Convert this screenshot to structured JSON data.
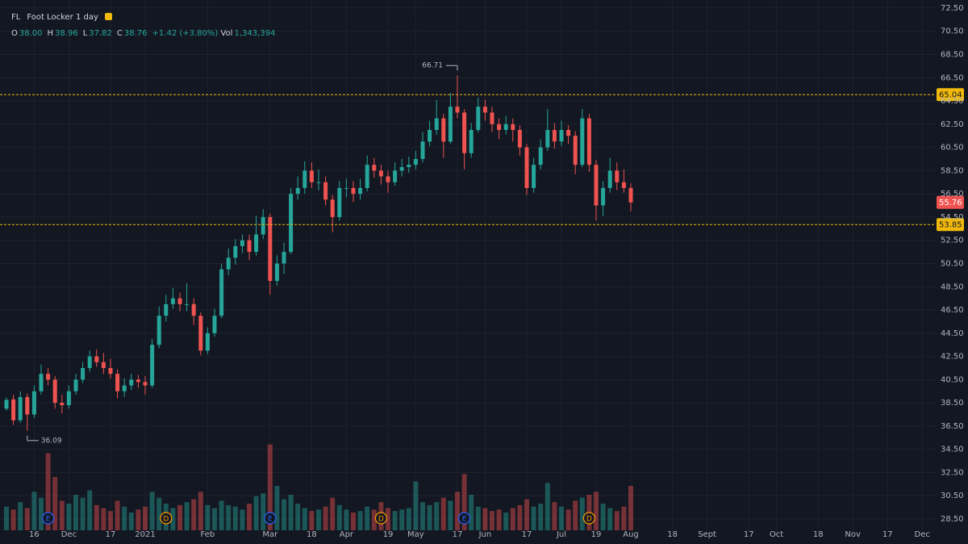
{
  "header": {
    "symbol": "FL",
    "name": "Foot Locker 1 day",
    "items": [
      {
        "label": "O",
        "value": "38.00"
      },
      {
        "label": "H",
        "value": "38.96"
      },
      {
        "label": "L",
        "value": "37.82"
      },
      {
        "label": "C",
        "value": "38.76"
      }
    ],
    "change": "+1.42 (+3.80%)",
    "vol_label": "Vol",
    "vol_value": "1,343,394"
  },
  "chart_data": {
    "type": "candlestick",
    "categories": [
      null,
      null,
      null,
      null,
      "16",
      null,
      null,
      null,
      null,
      "Dec",
      null,
      null,
      null,
      null,
      null,
      "17",
      null,
      null,
      null,
      null,
      "2021",
      null,
      null,
      null,
      null,
      null,
      null,
      null,
      null,
      "Feb",
      null,
      null,
      null,
      null,
      null,
      null,
      null,
      null,
      "Mar",
      null,
      null,
      null,
      null,
      null,
      "18",
      null,
      null,
      null,
      null,
      "Apr",
      null,
      null,
      null,
      null,
      null,
      "19",
      null,
      null,
      null,
      "May",
      null,
      null,
      null,
      null,
      null,
      "17",
      null,
      null,
      null,
      "Jun",
      null,
      null,
      null,
      null,
      null,
      "17",
      null,
      null,
      null,
      null,
      "Jul",
      null,
      null,
      null,
      null,
      "19",
      null,
      null,
      null,
      null,
      "Aug",
      null,
      null,
      null,
      null,
      null,
      "18",
      null,
      null,
      null,
      null,
      "Sept",
      null,
      null,
      null,
      null,
      null,
      "17",
      null,
      null,
      null,
      "Oct",
      null,
      null,
      null,
      null,
      null,
      "18",
      null,
      null,
      null,
      null,
      "Nov",
      null,
      null,
      null,
      null,
      "17",
      null,
      null,
      null,
      null,
      "Dec",
      null
    ],
    "ohlc": [
      [
        38.0,
        38.96,
        37.82,
        38.76
      ],
      [
        38.8,
        39.2,
        36.6,
        37.0
      ],
      [
        37.0,
        39.5,
        36.8,
        39.0
      ],
      [
        39.0,
        39.3,
        36.09,
        37.5
      ],
      [
        37.5,
        40.0,
        37.2,
        39.5
      ],
      [
        39.5,
        41.8,
        39.2,
        41.0
      ],
      [
        41.0,
        41.5,
        40.0,
        40.5
      ],
      [
        40.5,
        40.8,
        38.0,
        38.5
      ],
      [
        38.5,
        39.2,
        37.6,
        38.3
      ],
      [
        38.3,
        40.0,
        38.0,
        39.5
      ],
      [
        39.5,
        41.0,
        39.2,
        40.5
      ],
      [
        40.5,
        42.0,
        40.2,
        41.5
      ],
      [
        41.5,
        43.0,
        41.2,
        42.5
      ],
      [
        42.5,
        43.1,
        41.6,
        42.0
      ],
      [
        42.0,
        42.8,
        41.0,
        41.5
      ],
      [
        41.5,
        42.3,
        40.6,
        41.0
      ],
      [
        41.0,
        41.4,
        38.9,
        39.5
      ],
      [
        39.5,
        40.6,
        39.0,
        40.0
      ],
      [
        40.0,
        41.0,
        39.6,
        40.5
      ],
      [
        40.5,
        40.9,
        39.8,
        40.3
      ],
      [
        40.3,
        40.8,
        39.2,
        40.0
      ],
      [
        40.0,
        44.0,
        39.8,
        43.5
      ],
      [
        43.5,
        46.8,
        43.2,
        46.0
      ],
      [
        46.0,
        47.8,
        45.5,
        47.0
      ],
      [
        47.0,
        48.4,
        46.6,
        47.5
      ],
      [
        47.5,
        48.0,
        46.4,
        47.0
      ],
      [
        47.0,
        48.8,
        46.4,
        47.0
      ],
      [
        47.0,
        47.5,
        45.2,
        46.0
      ],
      [
        46.0,
        46.3,
        42.6,
        43.0
      ],
      [
        43.0,
        45.0,
        42.7,
        44.5
      ],
      [
        44.5,
        46.6,
        44.2,
        46.0
      ],
      [
        46.0,
        50.5,
        45.8,
        50.0
      ],
      [
        50.0,
        51.8,
        49.5,
        51.0
      ],
      [
        51.0,
        52.6,
        50.4,
        52.0
      ],
      [
        52.0,
        53.0,
        51.4,
        52.5
      ],
      [
        52.5,
        53.0,
        50.8,
        51.5
      ],
      [
        51.5,
        54.6,
        51.2,
        53.0
      ],
      [
        53.0,
        55.2,
        52.6,
        54.5
      ],
      [
        54.5,
        54.8,
        47.8,
        49.0
      ],
      [
        49.0,
        51.2,
        48.6,
        50.5
      ],
      [
        50.5,
        52.3,
        49.6,
        51.5
      ],
      [
        51.5,
        57.0,
        51.3,
        56.5
      ],
      [
        56.5,
        58.0,
        56.0,
        57.0
      ],
      [
        57.0,
        59.3,
        56.5,
        58.5
      ],
      [
        58.5,
        59.2,
        57.0,
        57.5
      ],
      [
        57.5,
        58.6,
        56.8,
        57.5
      ],
      [
        57.5,
        58.0,
        55.5,
        56.0
      ],
      [
        56.0,
        56.4,
        53.2,
        54.5
      ],
      [
        54.5,
        57.6,
        54.2,
        57.0
      ],
      [
        57.0,
        57.8,
        56.2,
        57.0
      ],
      [
        57.0,
        57.6,
        55.8,
        56.5
      ],
      [
        56.5,
        57.8,
        56.0,
        57.0
      ],
      [
        57.0,
        59.8,
        56.7,
        59.0
      ],
      [
        59.0,
        59.6,
        57.9,
        58.5
      ],
      [
        58.5,
        59.0,
        57.3,
        58.0
      ],
      [
        58.0,
        58.5,
        56.6,
        57.5
      ],
      [
        57.5,
        59.2,
        57.2,
        58.5
      ],
      [
        58.5,
        59.5,
        58.0,
        58.8
      ],
      [
        58.8,
        59.7,
        58.3,
        59.0
      ],
      [
        59.0,
        60.2,
        58.6,
        59.5
      ],
      [
        59.5,
        61.8,
        59.2,
        61.0
      ],
      [
        61.0,
        62.8,
        60.6,
        62.0
      ],
      [
        62.0,
        64.6,
        61.6,
        63.0
      ],
      [
        63.0,
        63.4,
        59.6,
        61.0
      ],
      [
        61.0,
        65.2,
        60.8,
        64.0
      ],
      [
        64.0,
        66.71,
        63.0,
        63.5
      ],
      [
        63.5,
        63.8,
        58.6,
        60.0
      ],
      [
        60.0,
        62.6,
        59.6,
        62.0
      ],
      [
        62.0,
        64.8,
        61.8,
        64.0
      ],
      [
        64.0,
        64.6,
        62.8,
        63.5
      ],
      [
        63.5,
        64.0,
        61.8,
        62.5
      ],
      [
        62.5,
        63.0,
        61.2,
        62.0
      ],
      [
        62.0,
        63.2,
        61.6,
        62.5
      ],
      [
        62.5,
        63.0,
        61.0,
        62.0
      ],
      [
        62.0,
        62.4,
        59.8,
        60.5
      ],
      [
        60.5,
        60.8,
        56.4,
        57.0
      ],
      [
        57.0,
        59.6,
        56.6,
        59.0
      ],
      [
        59.0,
        61.2,
        58.6,
        60.5
      ],
      [
        60.5,
        63.8,
        60.2,
        62.0
      ],
      [
        62.0,
        62.6,
        60.4,
        61.0
      ],
      [
        61.0,
        62.8,
        60.6,
        62.0
      ],
      [
        62.0,
        62.4,
        60.8,
        61.5
      ],
      [
        61.5,
        61.9,
        58.2,
        59.0
      ],
      [
        59.0,
        63.8,
        58.8,
        63.0
      ],
      [
        63.0,
        63.4,
        58.4,
        59.0
      ],
      [
        59.0,
        59.4,
        54.2,
        55.5
      ],
      [
        55.5,
        57.6,
        54.6,
        57.0
      ],
      [
        57.0,
        59.6,
        56.6,
        58.5
      ],
      [
        58.5,
        59.2,
        56.8,
        57.5
      ],
      [
        57.5,
        58.6,
        56.6,
        57.0
      ],
      [
        57.0,
        57.4,
        55.0,
        55.76
      ],
      null,
      null,
      null,
      null,
      null,
      null,
      null,
      null,
      null,
      null,
      null,
      null,
      null,
      null,
      null,
      null,
      null,
      null,
      null,
      null,
      null,
      null,
      null,
      null,
      null,
      null,
      null,
      null,
      null,
      null,
      null,
      null,
      null,
      null,
      null,
      null,
      null,
      null,
      null,
      null,
      null,
      null,
      null
    ],
    "volume": [
      1600000,
      1400000,
      1900000,
      1500000,
      2600000,
      2200000,
      5200000,
      3600000,
      2000000,
      1800000,
      2400000,
      2200000,
      2700000,
      1700000,
      1500000,
      1300000,
      2000000,
      1600000,
      1200000,
      1400000,
      1600000,
      2600000,
      2200000,
      1800000,
      1500000,
      1700000,
      1900000,
      2100000,
      2600000,
      1700000,
      1500000,
      2000000,
      1700000,
      1600000,
      1400000,
      1800000,
      2300000,
      2500000,
      5800000,
      3000000,
      2100000,
      2400000,
      1800000,
      1500000,
      1300000,
      1400000,
      1600000,
      2200000,
      1700000,
      1400000,
      1200000,
      1300000,
      1600000,
      1400000,
      1900000,
      1500000,
      1300000,
      1400000,
      1500000,
      3300000,
      1900000,
      1700000,
      1900000,
      2200000,
      2000000,
      2600000,
      3800000,
      2400000,
      1600000,
      1500000,
      1300000,
      1400000,
      1200000,
      1500000,
      1700000,
      2100000,
      1600000,
      1800000,
      3200000,
      1900000,
      1600000,
      1400000,
      2000000,
      2200000,
      2400000,
      2600000,
      1800000,
      1500000,
      1300000,
      1600000,
      3000000,
      null,
      null,
      null,
      null,
      null,
      null,
      null,
      null,
      null,
      null,
      null,
      null,
      null,
      null,
      null,
      null,
      null,
      null,
      null,
      null,
      null,
      null,
      null,
      null,
      null,
      null,
      null,
      null,
      null,
      null,
      null,
      null,
      null,
      null,
      null,
      null,
      null,
      null,
      null,
      null,
      null,
      null,
      null
    ],
    "volume_lim": [
      0,
      6000000
    ],
    "ylim": [
      27.32,
      73.19
    ],
    "yticks": [
      {
        "value": 28.5,
        "label": "28.50"
      },
      {
        "value": 30.5,
        "label": "30.50"
      },
      {
        "value": 32.5,
        "label": "32.50"
      },
      {
        "value": 34.5,
        "label": "34.50"
      },
      {
        "value": 36.5,
        "label": "36.50"
      },
      {
        "value": 38.5,
        "label": "38.50"
      },
      {
        "value": 40.5,
        "label": "40.50"
      },
      {
        "value": 42.5,
        "label": "42.50"
      },
      {
        "value": 44.5,
        "label": "44.50"
      },
      {
        "value": 46.5,
        "label": "46.50"
      },
      {
        "value": 48.5,
        "label": "48.50"
      },
      {
        "value": 50.5,
        "label": "50.50"
      },
      {
        "value": 52.5,
        "label": "52.50"
      },
      {
        "value": 54.5,
        "label": "54.50"
      },
      {
        "value": 56.5,
        "label": "56.50"
      },
      {
        "value": 58.5,
        "label": "58.50"
      },
      {
        "value": 60.5,
        "label": "60.50"
      },
      {
        "value": 62.5,
        "label": "62.50"
      },
      {
        "value": 64.5,
        "label": "64.50"
      },
      {
        "value": 66.5,
        "label": "66.50"
      },
      {
        "value": 68.5,
        "label": "68.50"
      },
      {
        "value": 70.5,
        "label": "70.50"
      },
      {
        "value": 72.5,
        "label": "72.50"
      }
    ],
    "grid": true,
    "up_color": "#26a69a",
    "down_color": "#ef5350",
    "levels": [
      65.04,
      53.85
    ],
    "level_color": "#f0b90b",
    "events": [
      {
        "index": 6,
        "label": "E",
        "color": "#2962ff"
      },
      {
        "index": 38,
        "label": "E",
        "color": "#2962ff"
      },
      {
        "index": 66,
        "label": "E",
        "color": "#2962ff"
      },
      {
        "index": 23,
        "label": "D",
        "color": "#ff9800"
      },
      {
        "index": 54,
        "label": "D",
        "color": "#ff9800"
      },
      {
        "index": 84,
        "label": "D",
        "color": "#ff9800"
      }
    ]
  }
}
